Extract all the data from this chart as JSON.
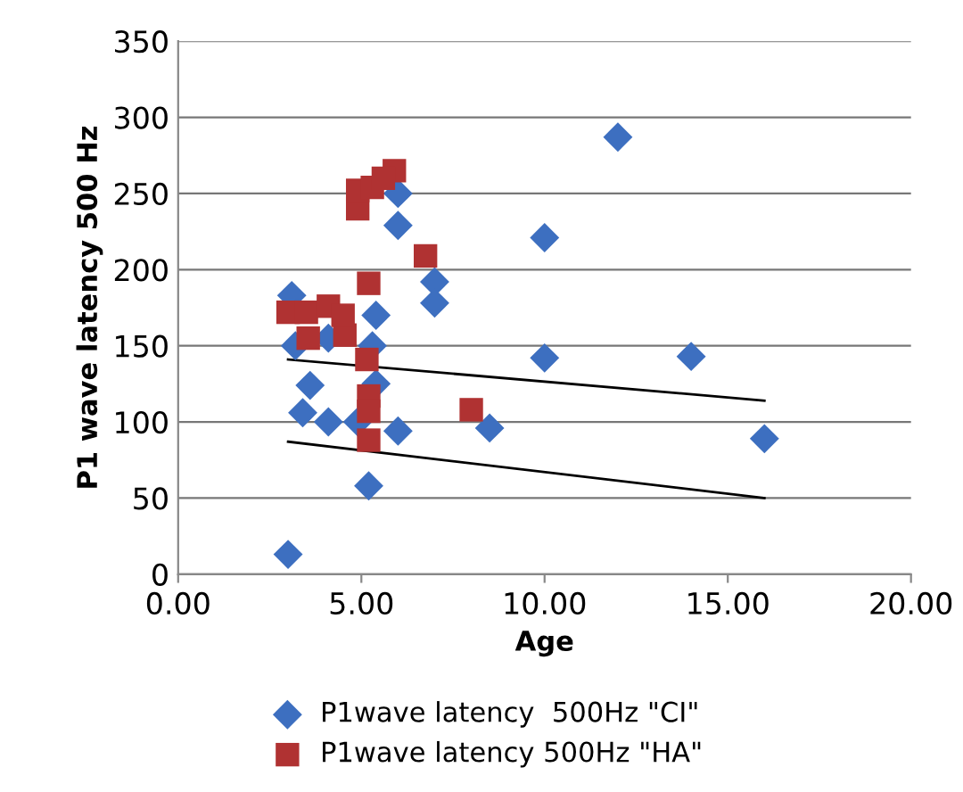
{
  "chart_data": {
    "type": "scatter",
    "xlabel": "Age",
    "ylabel": "P1 wave latency 500 Hz",
    "xlim": [
      0,
      20
    ],
    "ylim": [
      0,
      350
    ],
    "xticks": [
      {
        "value": 0,
        "label": "0.00"
      },
      {
        "value": 5,
        "label": "5.00"
      },
      {
        "value": 10,
        "label": "10.00"
      },
      {
        "value": 15,
        "label": "15.00"
      },
      {
        "value": 20,
        "label": "20.00"
      }
    ],
    "yticks": [
      0,
      50,
      100,
      150,
      200,
      250,
      300,
      350
    ],
    "grid": "y",
    "legend": "bottom",
    "series": [
      {
        "name": "P1wave latency  500Hz \"CI\"",
        "color": "#3d6fc0",
        "marker": "diamond",
        "x": [
          3.0,
          3.1,
          3.2,
          3.6,
          3.4,
          4.1,
          4.1,
          5.4,
          5.3,
          5.4,
          4.9,
          6.0,
          5.2,
          6.0,
          6.0,
          7.0,
          7.0,
          10.0,
          10.0,
          12.0,
          14.0,
          8.5,
          16.0
        ],
        "values": [
          13,
          183,
          150,
          124,
          106,
          100,
          155,
          170,
          150,
          125,
          100,
          94,
          58,
          229,
          250,
          192,
          178,
          221,
          142,
          287,
          143,
          96,
          89
        ]
      },
      {
        "name": "P1wave latency 500Hz \"HA\"",
        "color": "#b03232",
        "marker": "square",
        "x": [
          3.0,
          3.5,
          4.1,
          3.55,
          4.55,
          5.15,
          5.2,
          4.9,
          4.9,
          5.3,
          5.9,
          6.75,
          5.2,
          5.2,
          5.2,
          8.0,
          4.5,
          5.6
        ],
        "values": [
          172,
          172,
          176,
          155,
          157,
          141,
          191,
          240,
          252,
          254,
          265,
          209,
          117,
          107,
          88,
          108,
          170,
          260
        ]
      },
      {
        "type": "line",
        "color": "#000000",
        "x": [
          3,
          16
        ],
        "values": [
          141,
          114
        ]
      },
      {
        "type": "line",
        "color": "#000000",
        "x": [
          3,
          16
        ],
        "values": [
          87,
          50
        ]
      }
    ]
  }
}
